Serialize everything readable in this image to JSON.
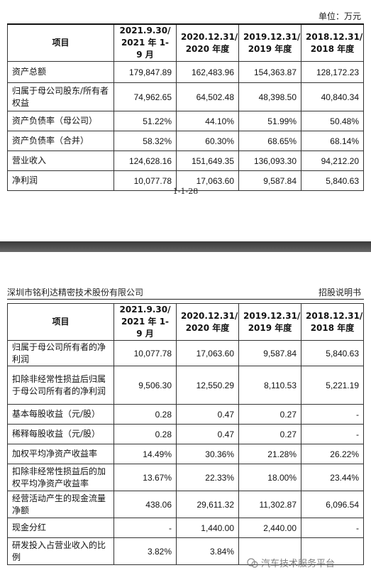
{
  "top_page": {
    "unit_label": "单位：万元",
    "page_number": "1-1-28",
    "table": {
      "item_header": "项目",
      "columns": [
        [
          "2021.9.30/",
          "2021 年 1-9 月"
        ],
        [
          "2020.12.31/",
          "2020 年度"
        ],
        [
          "2019.12.31/",
          "2019 年度"
        ],
        [
          "2018.12.31/",
          "2018 年度"
        ]
      ],
      "rows": [
        {
          "label": "资产总额",
          "values": [
            "179,847.89",
            "162,483.96",
            "154,363.87",
            "128,172.23"
          ]
        },
        {
          "label": "归属于母公司股东/所有者权益",
          "values": [
            "74,962.65",
            "64,502.48",
            "48,398.50",
            "40,840.34"
          ]
        },
        {
          "label": "资产负债率（母公司）",
          "values": [
            "51.22%",
            "44.10%",
            "51.99%",
            "50.48%"
          ]
        },
        {
          "label": "资产负债率（合并）",
          "values": [
            "58.32%",
            "60.30%",
            "68.65%",
            "68.14%"
          ]
        },
        {
          "label": "营业收入",
          "values": [
            "124,628.16",
            "151,649.35",
            "136,093.30",
            "94,212.20"
          ]
        },
        {
          "label": "净利润",
          "values": [
            "10,077.78",
            "17,063.60",
            "9,587.84",
            "5,840.63"
          ]
        }
      ]
    }
  },
  "bottom_page": {
    "company_name": "深圳市铭利达精密技术股份有限公司",
    "doc_type": "招股说明书",
    "table": {
      "item_header": "项目",
      "columns": [
        [
          "2021.9.30/",
          "2021 年 1-9 月"
        ],
        [
          "2020.12.31/",
          "2020 年度"
        ],
        [
          "2019.12.31/",
          "2019 年度"
        ],
        [
          "2018.12.31/",
          "2018 年度"
        ]
      ],
      "rows": [
        {
          "label": "归属于母公司所有者的净利润",
          "values": [
            "10,077.78",
            "17,063.60",
            "9,587.84",
            "5,840.63"
          ]
        },
        {
          "label": "扣除非经常性损益后归属于母公司所有者的净利润",
          "values": [
            "9,506.30",
            "12,550.29",
            "8,110.53",
            "5,221.19"
          ]
        },
        {
          "label": "基本每股收益（元/股）",
          "values": [
            "0.28",
            "0.47",
            "0.27",
            "-"
          ]
        },
        {
          "label": "稀释每股收益（元/股）",
          "values": [
            "0.28",
            "0.47",
            "0.27",
            "-"
          ]
        },
        {
          "label": "加权平均净资产收益率",
          "values": [
            "14.49%",
            "30.36%",
            "21.28%",
            "26.22%"
          ]
        },
        {
          "label": "扣除非经常性损益后的加权平均净资产收益率",
          "values": [
            "13.67%",
            "22.33%",
            "18.00%",
            "23.44%"
          ]
        },
        {
          "label": "经营活动产生的现金流量净额",
          "values": [
            "438.06",
            "29,611.32",
            "11,302.87",
            "6,096.54"
          ]
        },
        {
          "label": "现金分红",
          "values": [
            "-",
            "1,440.00",
            "2,440.00",
            "-"
          ]
        },
        {
          "label": "研发投入占营业收入的比例",
          "values": [
            "3.82%",
            "3.84%",
            "",
            ""
          ]
        }
      ]
    },
    "watermark": "汽车技术服务平台"
  }
}
